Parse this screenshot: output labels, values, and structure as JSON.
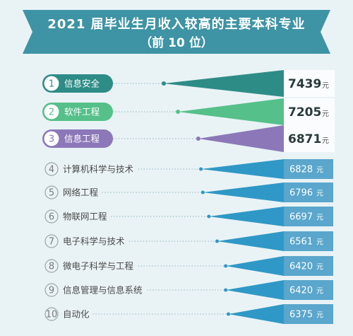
{
  "colors": {
    "background": "#e9f3f6",
    "banner": "#3e93a4",
    "rank1": "#2e8c87",
    "rank2": "#55c08a",
    "rank3": "#8c78b8",
    "others": "#2f98c6",
    "value_box": "#5aa6cc"
  },
  "chart_data": {
    "type": "bar",
    "title": "2021 届毕业生月收入较高的主要本科专业",
    "subtitle": "（前 10 位）",
    "unit": "元",
    "ranks": [
      1,
      2,
      3,
      4,
      5,
      6,
      7,
      8,
      9,
      10
    ],
    "categories": [
      "信息安全",
      "软件工程",
      "信息工程",
      "计算机科学与技术",
      "网络工程",
      "物联网工程",
      "电子科学与技术",
      "微电子科学与工程",
      "信息管理与信息系统",
      "自动化"
    ],
    "values": [
      7439,
      7205,
      6871,
      6828,
      6796,
      6697,
      6561,
      6420,
      6420,
      6375
    ]
  }
}
